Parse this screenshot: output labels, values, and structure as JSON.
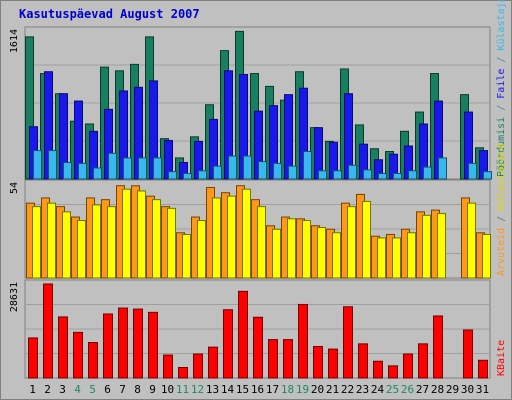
{
  "chart_data": {
    "type": "bar",
    "title": "Kasutuspäevad August 2007",
    "days": [
      "1",
      "2",
      "3",
      "4",
      "5",
      "6",
      "7",
      "8",
      "9",
      "10",
      "11",
      "12",
      "13",
      "14",
      "15",
      "16",
      "17",
      "18",
      "19",
      "20",
      "21",
      "22",
      "23",
      "24",
      "25",
      "26",
      "27",
      "28",
      "29",
      "30",
      "31"
    ],
    "weekend_days": [
      "4",
      "5",
      "11",
      "12",
      "18",
      "19",
      "25",
      "26"
    ],
    "panels": [
      {
        "ymax_label": "1614",
        "ymax": 1614,
        "side_label": [
          "Pöördumisi",
          " / ",
          "Faile",
          " / ",
          "Külastajaid"
        ],
        "series": [
          {
            "name": "Pöördumisi",
            "color": "#188060",
            "values": [
              1550,
              1150,
              930,
              630,
              600,
              1220,
              1180,
              1250,
              1550,
              440,
              230,
              460,
              810,
              1400,
              1610,
              1150,
              1010,
              860,
              1170,
              560,
              410,
              1200,
              590,
              330,
              300,
              520,
              730,
              1150,
              null,
              920,
              340
            ]
          },
          {
            "name": "Faile",
            "color": "#1818ee",
            "values": [
              570,
              1170,
              930,
              850,
              520,
              760,
              960,
              1000,
              1070,
              420,
              180,
              410,
              650,
              1180,
              1140,
              740,
              800,
              920,
              990,
              560,
              400,
              930,
              380,
              210,
              270,
              360,
              600,
              850,
              null,
              730,
              310
            ]
          },
          {
            "name": "Külastajaid",
            "color": "#38b8ee",
            "values": [
              310,
              310,
              180,
              170,
              120,
              280,
              230,
              230,
              230,
              80,
              60,
              90,
              140,
              250,
              250,
              190,
              170,
              140,
              300,
              90,
              90,
              150,
              100,
              60,
              60,
              90,
              130,
              230,
              null,
              170,
              80
            ]
          }
        ]
      },
      {
        "ymax_label": "54",
        "ymax": 54,
        "side_label": [
          "Arvuteid",
          " / ",
          "Külastajaid"
        ],
        "series": [
          {
            "name": "Arvuteid",
            "color": "#ff9818",
            "values": [
              43,
              46,
              41,
              35,
              46,
              45,
              53,
              53,
              47,
              41,
              26,
              35,
              52,
              49,
              53,
              45,
              30,
              35,
              34,
              30,
              28,
              43,
              48,
              24,
              25,
              28,
              38,
              39,
              null,
              46,
              26
            ]
          },
          {
            "name": "Külastajaid",
            "color": "#ffff00",
            "values": [
              41,
              43,
              38,
              33,
              42,
              41,
              51,
              50,
              45,
              40,
              25,
              33,
              46,
              47,
              51,
              41,
              28,
              34,
              33,
              29,
              26,
              41,
              44,
              23,
              23,
              26,
              36,
              37,
              null,
              43,
              25
            ]
          }
        ]
      },
      {
        "ymax_label": "28631",
        "ymax": 28631,
        "side_label": [
          "KBaite"
        ],
        "series": [
          {
            "name": "KBaite",
            "color": "#ff0000",
            "values": [
              12200,
              28630,
              18600,
              13900,
              10800,
              19500,
              21300,
              21000,
              20000,
              7000,
              3200,
              7300,
              9400,
              20800,
              26400,
              18500,
              11700,
              11700,
              22400,
              9600,
              8800,
              21700,
              10400,
              5100,
              3700,
              7300,
              10400,
              18900,
              null,
              14600,
              5400
            ]
          }
        ]
      }
    ]
  }
}
